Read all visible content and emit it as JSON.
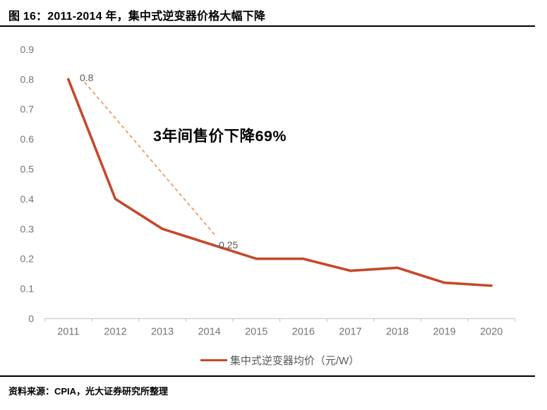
{
  "figure": {
    "title": "图 16：2011-2014 年，集中式逆变器价格大幅下降",
    "source": "资料来源：CPIA，光大证券研究所整理"
  },
  "legend": {
    "label": "集中式逆变器均价（元/W）"
  },
  "colors": {
    "line": "#C5492B",
    "dashed_connector": "#E9975C",
    "axis": "#CCCCCC",
    "tick_text": "#757575",
    "data_label_text": "#595959",
    "text": "#000000"
  },
  "chart_data": {
    "type": "line",
    "title": "",
    "xlabel": "",
    "ylabel": "",
    "categories": [
      "2011",
      "2012",
      "2013",
      "2014",
      "2015",
      "2016",
      "2017",
      "2018",
      "2019",
      "2020"
    ],
    "series": [
      {
        "name": "集中式逆变器均价（元/W）",
        "values": [
          0.8,
          0.4,
          0.3,
          0.25,
          0.2,
          0.2,
          0.16,
          0.17,
          0.12,
          0.11
        ]
      }
    ],
    "ylim": [
      0,
      0.9
    ],
    "yticks": [
      {
        "label": "0",
        "value": 0.0
      },
      {
        "label": "0.1",
        "value": 0.1
      },
      {
        "label": "0.2",
        "value": 0.2
      },
      {
        "label": "0.3",
        "value": 0.3
      },
      {
        "label": "0.4",
        "value": 0.4
      },
      {
        "label": "0.5",
        "value": 0.5
      },
      {
        "label": "0.6",
        "value": 0.6
      },
      {
        "label": "0.7",
        "value": 0.7
      },
      {
        "label": "0.8",
        "value": 0.8
      },
      {
        "label": "0.9",
        "value": 0.9
      }
    ],
    "grid": false,
    "legend_position": "bottom",
    "annotation": "3年间售价下降69%",
    "point_labels": [
      {
        "category": "2011",
        "text": "0.8"
      },
      {
        "category": "2014",
        "text": "0.25"
      }
    ],
    "dashed_connector": {
      "from": "2011",
      "to": "2014"
    }
  }
}
